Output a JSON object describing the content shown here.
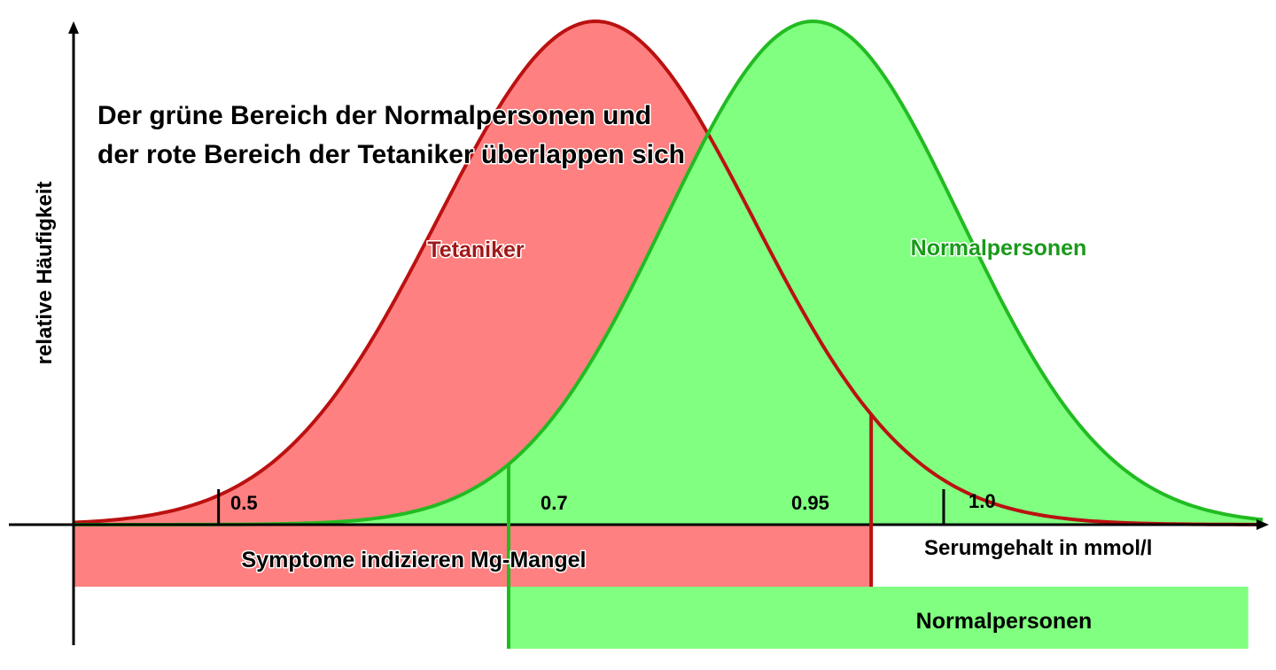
{
  "chart_data": {
    "type": "area",
    "title_lines": [
      "Der grüne Bereich der Normalpersonen und",
      "der rote Bereich der Tetaniker überlappen sich"
    ],
    "xlabel": "Serumgehalt in mmol/l",
    "ylabel": "relative Häufigkeit",
    "xticks": [
      {
        "value": 0.5,
        "label": "0.5"
      },
      {
        "value": 1.0,
        "label": "1.0"
      }
    ],
    "markers": [
      {
        "value": 0.7,
        "label": "0.7",
        "color": "#22bb22"
      },
      {
        "value": 0.95,
        "label": "0.95",
        "color": "#bb1111"
      }
    ],
    "series": [
      {
        "name": "Tetaniker",
        "mean": 0.76,
        "sd": 0.109,
        "peak": 1.0,
        "fill": "#ff8080",
        "stroke": "#bb1111",
        "label_color": "#a01818"
      },
      {
        "name": "Normalpersonen",
        "mean": 0.91,
        "sd": 0.102,
        "peak": 1.0,
        "fill": "#80ff80",
        "stroke": "#22bb22",
        "label_color": "#1a9a1a"
      }
    ],
    "bands": [
      {
        "label": "Symptome indizieren Mg-Mangel",
        "from_x": 0.4,
        "to_x": 0.95,
        "color": "#ff8080"
      },
      {
        "label": "Normalpersonen",
        "from_x": 0.7,
        "to_x": 1.21,
        "color": "#80ff80"
      }
    ],
    "xlim": [
      0.4,
      1.22
    ],
    "ylim": [
      0,
      1
    ],
    "grid": false
  }
}
